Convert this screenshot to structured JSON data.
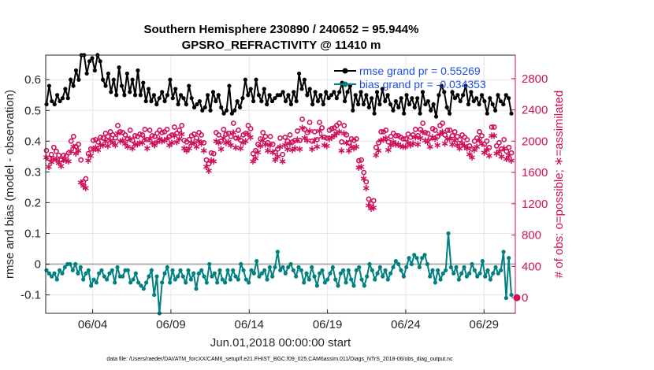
{
  "chart_data": {
    "type": "line",
    "title_line1": "Southern Hemisphere 230890 / 240652 = 95.944%",
    "title_line2": "GPSRO_REFRACTIVITY @ 11410 m",
    "xlabel": "Jun.01,2018 00:00:00 start",
    "ylabel_left": "rmse and bias (model - observation)",
    "ylabel_right": "# of obs: o=possible; ∗=assimilated",
    "footer": "data file: /Users/raeder/DAI/ATM_forcXX/CAM6_setup/f.e21.FHIST_BGC.f09_025.CAM6assim.011/Diags_NTrS_2018-06/obs_diag_output.nc",
    "x_ticks": [
      "06/04",
      "06/09",
      "06/14",
      "06/19",
      "06/24",
      "06/29"
    ],
    "x_tick_days": [
      4,
      9,
      14,
      19,
      24,
      29
    ],
    "xlim_days": [
      1,
      31
    ],
    "y_left_ticks": [
      "-0.1",
      "0",
      "0.1",
      "0.2",
      "0.3",
      "0.4",
      "0.5",
      "0.6"
    ],
    "y_left_tick_values": [
      -0.1,
      0,
      0.1,
      0.2,
      0.3,
      0.4,
      0.5,
      0.6
    ],
    "ylim_left": [
      -0.16,
      0.68
    ],
    "y_right_ticks": [
      "0",
      "400",
      "800",
      "1200",
      "1600",
      "2000",
      "2400",
      "2800"
    ],
    "y_right_tick_values": [
      0,
      400,
      800,
      1200,
      1600,
      2000,
      2400,
      2800
    ],
    "ylim_right": [
      -200,
      3100
    ],
    "grid": true,
    "legend_position": "top-right",
    "series": [
      {
        "name": "rmse",
        "legend": "rmse grand pr = 0.55269",
        "color": "#000000",
        "values": [
          0.52,
          0.58,
          0.53,
          0.52,
          0.55,
          0.53,
          0.54,
          0.57,
          0.54,
          0.6,
          0.58,
          0.63,
          0.6,
          0.68,
          0.68,
          0.62,
          0.66,
          0.67,
          0.63,
          0.68,
          0.66,
          0.6,
          0.58,
          0.62,
          0.56,
          0.6,
          0.55,
          0.64,
          0.58,
          0.55,
          0.62,
          0.56,
          0.6,
          0.55,
          0.63,
          0.55,
          0.59,
          0.53,
          0.57,
          0.53,
          0.55,
          0.52,
          0.54,
          0.56,
          0.53,
          0.55,
          0.6,
          0.54,
          0.57,
          0.52,
          0.55,
          0.54,
          0.52,
          0.58,
          0.54,
          0.51,
          0.52,
          0.53,
          0.5,
          0.51,
          0.55,
          0.5,
          0.56,
          0.53,
          0.55,
          0.51,
          0.49,
          0.5,
          0.58,
          0.49,
          0.5,
          0.53,
          0.51,
          0.54,
          0.6,
          0.55,
          0.57,
          0.53,
          0.6,
          0.55,
          0.53,
          0.57,
          0.52,
          0.55,
          0.53,
          0.54,
          0.55,
          0.55,
          0.56,
          0.53,
          0.55,
          0.52,
          0.56,
          0.53,
          0.62,
          0.57,
          0.6,
          0.55,
          0.57,
          0.52,
          0.56,
          0.53,
          0.55,
          0.52,
          0.56,
          0.54,
          0.55,
          0.56,
          0.54,
          0.56,
          0.59,
          0.53,
          0.56,
          0.58,
          0.5,
          0.55,
          0.52,
          0.56,
          0.52,
          0.55,
          0.51,
          0.54,
          0.49,
          0.56,
          0.52,
          0.57,
          0.53,
          0.55,
          0.52,
          0.5,
          0.53,
          0.51,
          0.54,
          0.49,
          0.55,
          0.52,
          0.54,
          0.51,
          0.54,
          0.49,
          0.56,
          0.52,
          0.53,
          0.5,
          0.52,
          0.48,
          0.55,
          0.58,
          0.56,
          0.51,
          0.49,
          0.56,
          0.54,
          0.55,
          0.53,
          0.55,
          0.58,
          0.52,
          0.56,
          0.53,
          0.54,
          0.52,
          0.55,
          0.53,
          0.49,
          0.54,
          0.52,
          0.5,
          0.55,
          0.53,
          0.52,
          0.55,
          0.54,
          0.49
        ],
        "mark_days_sample": "hourly-6 steps from day 1"
      },
      {
        "name": "bias",
        "legend": "bias grand pr = -0.034353",
        "color": "#008080",
        "values": [
          -0.02,
          -0.03,
          -0.04,
          -0.03,
          -0.05,
          -0.02,
          -0.03,
          -0.01,
          0.0,
          0.0,
          -0.02,
          0.0,
          -0.03,
          -0.01,
          -0.05,
          -0.03,
          -0.02,
          -0.07,
          -0.05,
          -0.06,
          -0.03,
          -0.02,
          -0.04,
          -0.05,
          -0.03,
          -0.02,
          -0.06,
          -0.01,
          -0.04,
          -0.04,
          -0.02,
          -0.02,
          -0.06,
          -0.05,
          -0.03,
          -0.06,
          -0.07,
          -0.08,
          -0.06,
          -0.04,
          -0.02,
          -0.1,
          -0.04,
          -0.16,
          -0.06,
          -0.03,
          -0.01,
          -0.06,
          -0.02,
          -0.05,
          -0.04,
          -0.02,
          -0.04,
          -0.06,
          -0.02,
          -0.05,
          -0.03,
          -0.08,
          -0.03,
          -0.02,
          -0.04,
          -0.06,
          0.0,
          -0.04,
          -0.03,
          -0.06,
          -0.02,
          -0.05,
          -0.06,
          -0.02,
          -0.05,
          -0.02,
          -0.04,
          -0.05,
          0.0,
          -0.02,
          -0.05,
          -0.06,
          -0.02,
          -0.03,
          0.01,
          -0.04,
          -0.03,
          -0.02,
          -0.05,
          -0.01,
          -0.04,
          -0.01,
          0.04,
          -0.02,
          -0.01,
          -0.03,
          -0.01,
          0.0,
          -0.02,
          -0.04,
          -0.01,
          -0.02,
          -0.06,
          -0.03,
          -0.05,
          -0.01,
          -0.04,
          -0.07,
          -0.03,
          -0.02,
          -0.06,
          -0.05,
          -0.03,
          -0.01,
          -0.05,
          -0.07,
          -0.03,
          -0.02,
          -0.06,
          -0.02,
          -0.05,
          -0.07,
          -0.02,
          -0.01,
          -0.05,
          -0.07,
          -0.04,
          0.0,
          -0.02,
          -0.05,
          -0.03,
          -0.01,
          -0.04,
          -0.02,
          -0.05,
          -0.03,
          -0.01,
          0.01,
          0.0,
          -0.02,
          -0.04,
          -0.01,
          0.02,
          0.0,
          0.03,
          0.02,
          -0.01,
          0.02,
          0.03,
          0.0,
          -0.04,
          -0.02,
          -0.06,
          -0.02,
          -0.05,
          -0.03,
          -0.02,
          0.1,
          -0.01,
          -0.03,
          -0.01,
          -0.05,
          -0.03,
          -0.01,
          -0.04,
          -0.03,
          0.0,
          -0.02,
          -0.04,
          -0.03,
          0.01,
          -0.04,
          -0.02,
          -0.05,
          -0.03,
          -0.01,
          -0.03,
          -0.02,
          0.04,
          -0.11,
          0.02,
          -0.1
        ]
      },
      {
        "name": "possible",
        "marker": "o",
        "color": "#d0105a",
        "axis": "right",
        "values": [
          1880,
          1780,
          1830,
          1920,
          1870,
          1820,
          1760,
          1820,
          1810,
          1850,
          2000,
          2060,
          1930,
          1960,
          1760,
          1480,
          1520,
          1840,
          1900,
          2010,
          2020,
          1990,
          2050,
          2040,
          2100,
          2060,
          2120,
          2080,
          2040,
          2200,
          2120,
          2110,
          2080,
          2030,
          2140,
          2010,
          2070,
          2060,
          2090,
          2080,
          2150,
          2020,
          2140,
          2070,
          2060,
          2100,
          2140,
          2110,
          2120,
          2150,
          2060,
          2080,
          2180,
          2100,
          2140,
          2200,
          2010,
          1990,
          2020,
          2070,
          2090,
          2040,
          2110,
          2080,
          1980,
          1760,
          1710,
          1850,
          1840,
          2110,
          2080,
          2000,
          2150,
          2090,
          2100,
          2060,
          2230,
          2040,
          2140,
          2010,
          2080,
          2100,
          2200,
          2160,
          1840,
          1880,
          1960,
          2030,
          2110,
          2060,
          1980,
          2060,
          1960,
          1860,
          1900,
          2040,
          1830,
          2050,
          2000,
          2080,
          1990,
          2010,
          2130,
          2010,
          2280,
          2150,
          2110,
          2240,
          2000,
          2120,
          2020,
          2240,
          2170,
          2050,
          2040,
          2140,
          2160,
          2170,
          2200,
          2230,
          1990,
          2200,
          2080,
          1980,
          2030,
          2010,
          2030,
          1750,
          1760,
          1600,
          1480,
          1260,
          1200,
          1240,
          1920,
          1980,
          2120,
          2120,
          2140,
          1990,
          2060,
          2100,
          2070,
          2070,
          2050,
          2030,
          2030,
          2090,
          2050,
          2080,
          2150,
          2070,
          2150,
          2230,
          2110,
          2100,
          2040,
          2160,
          2140,
          2060,
          2200,
          2230,
          2080,
          2140,
          2140,
          2070,
          2120,
          2060,
          2020,
          2080,
          2050,
          2020,
          1940,
          1900,
          2000,
          2040,
          2120,
          2070,
          1960,
          2000,
          1920,
          2180,
          2180,
          1940,
          1980,
          1900,
          2020,
          1870,
          1920,
          1850
        ]
      },
      {
        "name": "assimilated",
        "marker": "*",
        "color": "#d0105a",
        "axis": "right",
        "values": [
          1800,
          1680,
          1740,
          1780,
          1770,
          1730,
          1690,
          1770,
          1760,
          1750,
          1880,
          1940,
          1850,
          1890,
          1480,
          1440,
          1410,
          1760,
          1820,
          1900,
          1930,
          1900,
          1960,
          1960,
          2010,
          1950,
          2020,
          1990,
          1960,
          2110,
          2010,
          2020,
          1980,
          1940,
          2040,
          1920,
          1970,
          1970,
          1990,
          1990,
          2040,
          1920,
          2040,
          1990,
          1960,
          2000,
          2040,
          2010,
          2020,
          2040,
          1960,
          1990,
          2080,
          2000,
          2040,
          2100,
          1920,
          1890,
          1920,
          1980,
          1990,
          1940,
          2010,
          1980,
          1890,
          1680,
          1630,
          1760,
          1750,
          2010,
          1990,
          1910,
          2050,
          1990,
          2000,
          1960,
          2120,
          1930,
          2050,
          1920,
          1990,
          2010,
          2100,
          2060,
          1750,
          1790,
          1870,
          1950,
          2020,
          1970,
          1890,
          1960,
          1870,
          1770,
          1810,
          1940,
          1750,
          1960,
          1910,
          1980,
          1900,
          1920,
          2030,
          1910,
          2180,
          2050,
          2020,
          2140,
          1910,
          2020,
          1940,
          2140,
          2070,
          1960,
          1950,
          2040,
          2060,
          2080,
          2110,
          2130,
          1890,
          2110,
          1990,
          1890,
          1940,
          1920,
          1940,
          1670,
          1680,
          1530,
          1410,
          1190,
          1150,
          1160,
          1830,
          1890,
          2020,
          2030,
          2050,
          1900,
          1960,
          2000,
          1970,
          1970,
          1950,
          1940,
          1940,
          1990,
          1960,
          1980,
          2060,
          1970,
          2050,
          2130,
          2020,
          2000,
          1940,
          2060,
          2040,
          1960,
          2100,
          2130,
          1980,
          2040,
          2040,
          1970,
          2020,
          1960,
          1920,
          1980,
          1950,
          1920,
          1840,
          1800,
          1900,
          1940,
          2020,
          1980,
          1860,
          1900,
          1820,
          2080,
          2080,
          1850,
          1880,
          1810,
          1920,
          1780,
          1820,
          1760
        ]
      }
    ]
  }
}
